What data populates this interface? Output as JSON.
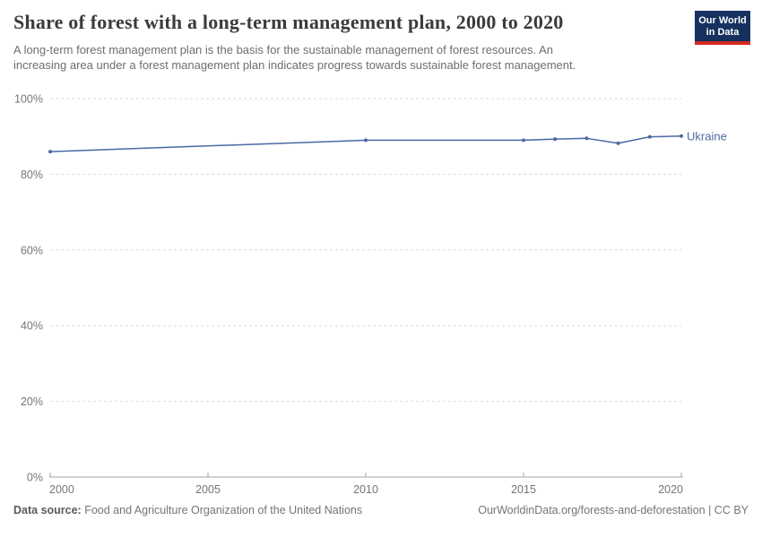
{
  "header": {
    "title": "Share of forest with a long-term management plan, 2000 to 2020",
    "subtitle_line1": "A long-term forest management plan is the basis for the sustainable management of forest resources. An",
    "subtitle_line2": "increasing area under a forest management plan indicates progress towards sustainable forest management."
  },
  "logo": {
    "line1": "Our World",
    "line2": "in Data",
    "bg_color": "#16315f",
    "bar_color": "#d42b21"
  },
  "chart_data": {
    "type": "line",
    "title": "Share of forest with a long-term management plan, 2000 to 2020",
    "x": [
      2000,
      2010,
      2015,
      2016,
      2017,
      2018,
      2019,
      2020
    ],
    "series": [
      {
        "name": "Ukraine",
        "values": [
          86.0,
          89.0,
          89.0,
          89.3,
          89.5,
          88.2,
          89.9,
          90.1
        ],
        "color": "#4a69a5"
      }
    ],
    "xlabel": "",
    "ylabel": "",
    "xlim": [
      2000,
      2020
    ],
    "ylim": [
      0,
      100
    ],
    "xticks": [
      2000,
      2005,
      2010,
      2015,
      2020
    ],
    "yticks": [
      0,
      20,
      40,
      60,
      80,
      100
    ],
    "ytick_suffix": "%",
    "grid": "horizontal-dashed",
    "legend": "line-end-label",
    "colors": {
      "gridline": "#dadada",
      "axis": "#a5a5a5",
      "tick_label": "#757575"
    }
  },
  "footer": {
    "datasource_label": "Data source:",
    "datasource_text": " Food and Agriculture Organization of the United Nations",
    "right_text": "OurWorldinData.org/forests-and-deforestation | CC BY"
  }
}
